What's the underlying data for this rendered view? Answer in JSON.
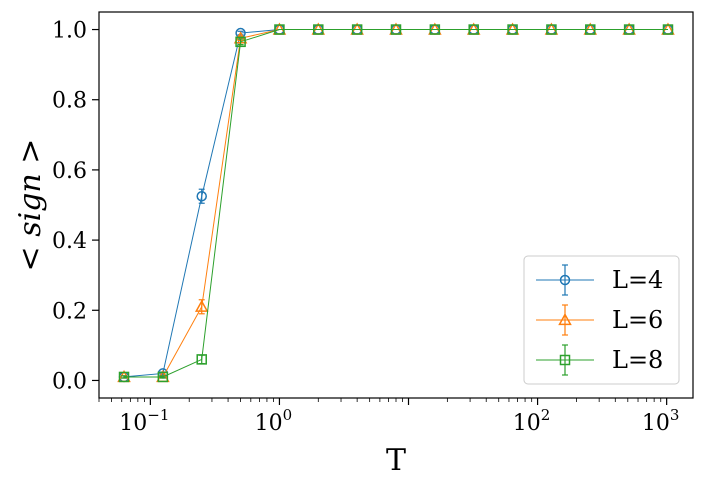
{
  "chart_data": {
    "type": "line",
    "xlabel": "T",
    "ylabel": "< sign >",
    "xscale": "log",
    "xlim": [
      0.04,
      1600
    ],
    "ylim": [
      -0.05,
      1.05
    ],
    "grid": false,
    "legend_position": "lower-right",
    "x_ticks": [
      {
        "base": "10",
        "exp": "−1",
        "value": 0.1
      },
      {
        "base": "10",
        "exp": "0",
        "value": 1
      },
      {
        "base": "10",
        "exp": "2",
        "value": 100
      },
      {
        "base": "10",
        "exp": "3",
        "value": 1000
      }
    ],
    "x_tick_labels_plain": [
      "10",
      "−1",
      "10",
      "0",
      "10",
      "2",
      "10",
      "3"
    ],
    "y_ticks": [
      0.0,
      0.2,
      0.4,
      0.6,
      0.8,
      1.0
    ],
    "y_tick_labels": [
      "0.0",
      "0.2",
      "0.4",
      "0.6",
      "0.8",
      "1.0"
    ],
    "x": [
      0.0625,
      0.125,
      0.25,
      0.5,
      1,
      2,
      4,
      8,
      16,
      32,
      64,
      128,
      256,
      512,
      1024
    ],
    "series": [
      {
        "name": "L=4",
        "color": "#1f77b4",
        "marker": "circle",
        "values": [
          0.01,
          0.02,
          0.525,
          0.99,
          1,
          1,
          1,
          1,
          1,
          1,
          1,
          1,
          1,
          1,
          1
        ],
        "errors": [
          0.003,
          0.004,
          0.02,
          0.005,
          0,
          0,
          0,
          0,
          0,
          0,
          0,
          0,
          0,
          0,
          0
        ]
      },
      {
        "name": "L=6",
        "color": "#ff7f0e",
        "marker": "triangle",
        "values": [
          0.01,
          0.01,
          0.21,
          0.975,
          1,
          1,
          1,
          1,
          1,
          1,
          1,
          1,
          1,
          1,
          1
        ],
        "errors": [
          0.003,
          0.003,
          0.02,
          0.006,
          0,
          0,
          0,
          0,
          0,
          0,
          0,
          0,
          0,
          0,
          0
        ]
      },
      {
        "name": "L=8",
        "color": "#2ca02c",
        "marker": "square",
        "values": [
          0.01,
          0.01,
          0.06,
          0.965,
          1,
          1,
          1,
          1,
          1,
          1,
          1,
          1,
          1,
          1,
          1
        ],
        "errors": [
          0.003,
          0.003,
          0.012,
          0.008,
          0,
          0,
          0,
          0,
          0,
          0,
          0,
          0,
          0,
          0,
          0
        ]
      }
    ]
  }
}
